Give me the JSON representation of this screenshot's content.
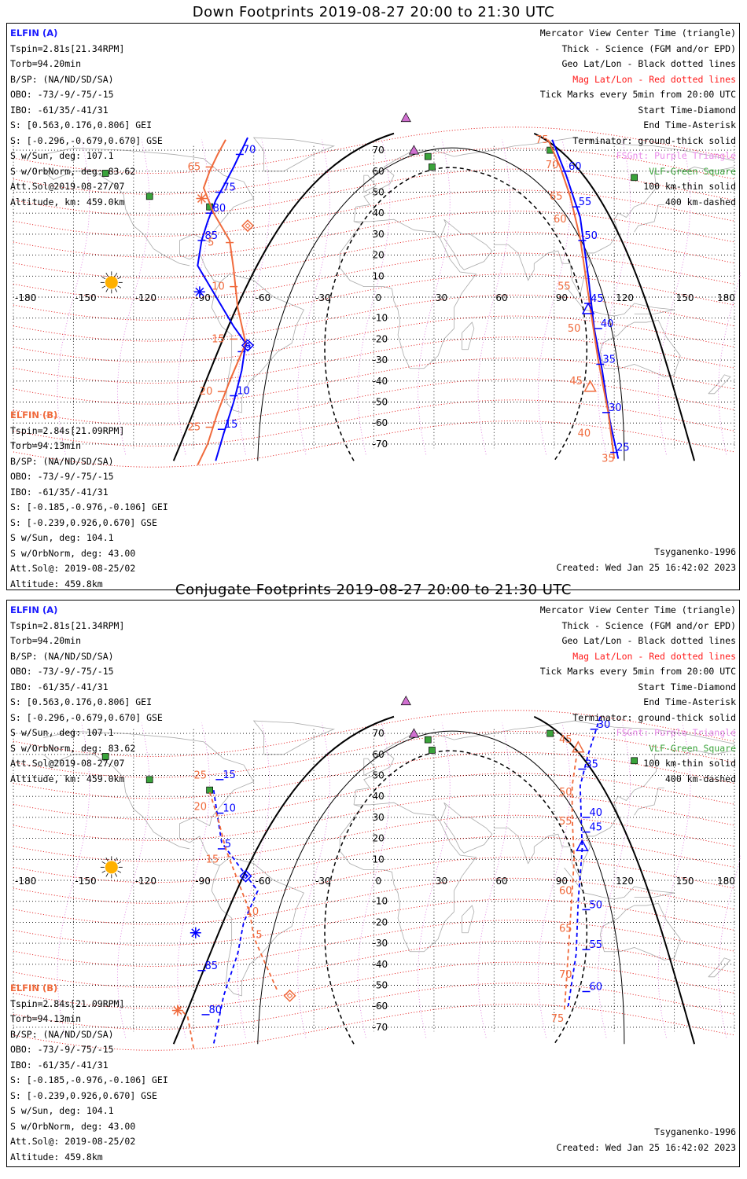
{
  "panels": [
    {
      "title": "Down Footprints 2019-08-27 20:00 to 21:30 UTC",
      "kind": "down",
      "orbit_a_ticks": [
        "70",
        "75",
        "80",
        "85",
        "5",
        "10",
        "15"
      ],
      "orbit_a_mag": [
        "65",
        "5",
        "10",
        "15",
        "20",
        "25"
      ],
      "orbit_b_ticks": [
        "60",
        "55",
        "50",
        "45",
        "40",
        "35",
        "30",
        "25"
      ],
      "orbit_b_mag": [
        "75",
        "70",
        "65",
        "60",
        "55",
        "50",
        "45",
        "40",
        "35"
      ]
    },
    {
      "title": "Conjugate Footprints 2019-08-27 20:00 to 21:30 UTC",
      "kind": "conjugate",
      "orbit_a_ticks": [
        "15",
        "10",
        "5",
        "85",
        "80"
      ],
      "orbit_a_mag": [
        "25",
        "20",
        "15",
        "10",
        "5"
      ],
      "orbit_b_ticks": [
        "30",
        "35",
        "40",
        "45",
        "50",
        "55",
        "60"
      ],
      "orbit_b_mag": [
        "45",
        "50",
        "55",
        "60",
        "65",
        "70",
        "75"
      ]
    }
  ],
  "elfin_a": {
    "title": "ELFIN (A)",
    "lines": [
      "Tspin=2.81s[21.34RPM]",
      "Torb=94.20min",
      "B/SP: (NA/ND/SD/SA)",
      "OBO: -73/-9/-75/-15",
      "IBO: -61/35/-41/31",
      "S: [0.563,0.176,0.806] GEI",
      "S: [-0.296,-0.679,0.670] GSE",
      "S w/Sun, deg: 107.1",
      "S w/OrbNorm, deg: 83.62",
      "Att.Sol@2019-08-27/07",
      "Altitude, km: 459.0km"
    ]
  },
  "elfin_b": {
    "title": "ELFIN (B)",
    "lines": [
      "Tspin=2.84s[21.09RPM]",
      "Torb=94.13min",
      "B/SP: (NA/ND/SD/SA)",
      "OBO: -73/-9/-75/-15",
      "IBO: -61/35/-41/31",
      "S: [-0.185,-0.976,-0.106] GEI",
      "S: [-0.239,0.926,0.670] GSE",
      "S w/Sun, deg: 104.1",
      "S w/OrbNorm, deg: 43.00",
      "Att.Sol@: 2019-08-25/02",
      "Altitude: 459.8km"
    ]
  },
  "legend": [
    {
      "text": "Mercator View Center Time (triangle)",
      "color": "black"
    },
    {
      "text": "Thick - Science (FGM and/or EPD)",
      "color": "black"
    },
    {
      "text": "Geo Lat/Lon - Black dotted lines",
      "color": "black"
    },
    {
      "text": "Mag Lat/Lon - Red dotted lines",
      "color": "red"
    },
    {
      "text": "Tick Marks every 5min from 20:00 UTC",
      "color": "black"
    },
    {
      "text": "Start Time-Diamond",
      "color": "black"
    },
    {
      "text": "End Time-Asterisk",
      "color": "black"
    },
    {
      "text": "Terminator: ground-thick solid",
      "color": "black"
    },
    {
      "text": "FSGnt: Purple Triangle",
      "color": "purple"
    },
    {
      "text": "VLF-Green Square",
      "color": "green"
    },
    {
      "text": "100 km-thin solid",
      "color": "black"
    },
    {
      "text": "400 km-dashed",
      "color": "black"
    }
  ],
  "model": "Tsyganenko-1996",
  "created": "Created: Wed Jan 25 16:42:02 2023",
  "lon_labels": [
    "-180",
    "-150",
    "-120",
    "-90",
    "-60",
    "-30",
    "0",
    "30",
    "60",
    "90",
    "120",
    "150",
    "180"
  ],
  "lat_labels": [
    "70",
    "60",
    "50",
    "40",
    "30",
    "20",
    "10",
    "0",
    "-10",
    "-20",
    "-30",
    "-40",
    "-50",
    "-60",
    "-70"
  ],
  "colors": {
    "orbit_a": "#0000ff",
    "orbit_b": "#f06a3c",
    "mag_grid": "#e00000",
    "geo_grid": "#000000",
    "fsg": "#e070e0",
    "vlf": "#3aa33a",
    "sun": "#ffb000",
    "coast": "#aaaaaa"
  },
  "icons": {
    "sun": "sun-icon",
    "start": "diamond-icon",
    "end": "asterisk-icon",
    "center": "triangle-icon",
    "fsg": "purple-triangle-icon",
    "vlf": "green-square-icon"
  }
}
